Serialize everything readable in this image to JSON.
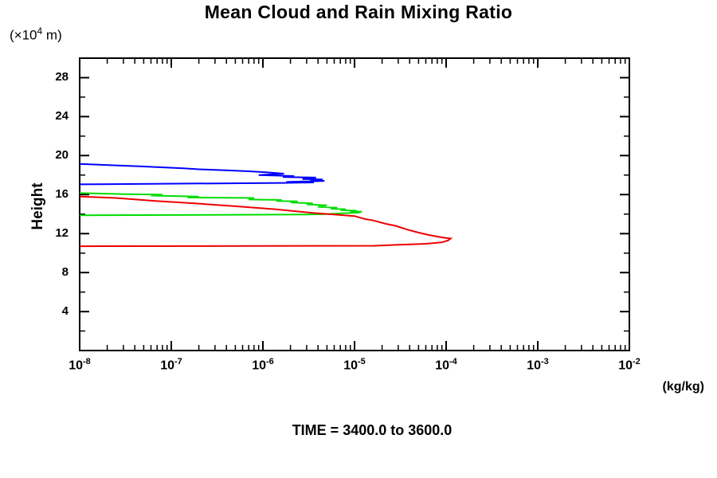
{
  "chart_data": {
    "type": "line",
    "title": "Mean Cloud and Rain Mixing Ratio",
    "y_axis_title": "Height",
    "y_axis_unit": {
      "prefix": "(×10",
      "exponent": "4",
      "suffix": " m)"
    },
    "x_axis_unit": "(kg/kg)",
    "time_annotation": "TIME = 3400.0 to 3600.0",
    "x_scale": "log10",
    "x_tick_base": "10",
    "x_range_exponents": [
      -8,
      -2
    ],
    "x_major_tick_exponents": [
      -8,
      -7,
      -6,
      -5,
      -4,
      -3,
      -2
    ],
    "y_range": [
      0,
      30
    ],
    "y_major_ticks": [
      4,
      8,
      12,
      16,
      20,
      24,
      28
    ],
    "y_minor_ticks": [
      2,
      6,
      10,
      14,
      18,
      22,
      26
    ],
    "grid": false,
    "legend": "none",
    "axis_color": "#000000",
    "series": [
      {
        "name": "blue-profile",
        "color": "#0000ff",
        "points": [
          [
            1e-08,
            19.15
          ],
          [
            2.5e-08,
            19.0
          ],
          [
            4.5e-08,
            18.9
          ],
          [
            1.35e-07,
            18.7
          ],
          [
            2e-07,
            18.6
          ],
          [
            3.9e-07,
            18.5
          ],
          [
            6.7e-07,
            18.4
          ],
          [
            1.05e-06,
            18.3
          ],
          [
            1.7e-06,
            18.15
          ],
          [
            9e-07,
            18.0
          ],
          [
            2.2e-06,
            17.9
          ],
          [
            1.65e-06,
            17.8
          ],
          [
            3.8e-06,
            17.75
          ],
          [
            2.7e-06,
            17.6
          ],
          [
            4.5e-06,
            17.55
          ],
          [
            3.3e-06,
            17.5
          ],
          [
            4.7e-06,
            17.4
          ],
          [
            1.8e-06,
            17.3
          ],
          [
            3.6e-06,
            17.25
          ],
          [
            1.65e-06,
            17.2
          ],
          [
            1e-08,
            17.05
          ]
        ]
      },
      {
        "name": "green-profile",
        "color": "#00dd00",
        "points": [
          [
            1e-08,
            16.15
          ],
          [
            3.3e-08,
            16.05
          ],
          [
            8e-08,
            16.0
          ],
          [
            6e-08,
            15.9
          ],
          [
            2e-07,
            15.8
          ],
          [
            1.5e-07,
            15.7
          ],
          [
            8e-07,
            15.65
          ],
          [
            7e-07,
            15.5
          ],
          [
            1.6e-06,
            15.45
          ],
          [
            1.4e-06,
            15.35
          ],
          [
            2.4e-06,
            15.3
          ],
          [
            2e-06,
            15.2
          ],
          [
            3.5e-06,
            15.1
          ],
          [
            3e-06,
            15.0
          ],
          [
            5e-06,
            14.9
          ],
          [
            4e-06,
            14.75
          ],
          [
            6.5e-06,
            14.65
          ],
          [
            5.5e-06,
            14.55
          ],
          [
            8e-06,
            14.5
          ],
          [
            7e-06,
            14.4
          ],
          [
            1.05e-05,
            14.35
          ],
          [
            9e-06,
            14.3
          ],
          [
            1.2e-05,
            14.25
          ],
          [
            1.1e-05,
            14.15
          ],
          [
            8e-06,
            14.1
          ],
          [
            5e-06,
            14.0
          ],
          [
            3e-06,
            13.95
          ],
          [
            1e-08,
            13.88
          ]
        ]
      },
      {
        "name": "red-profile",
        "color": "#ee0000",
        "points": [
          [
            1e-08,
            15.8
          ],
          [
            2.5e-08,
            15.65
          ],
          [
            6.7e-08,
            15.35
          ],
          [
            1.8e-07,
            15.1
          ],
          [
            5e-07,
            14.8
          ],
          [
            1.35e-06,
            14.5
          ],
          [
            3.7e-06,
            14.1
          ],
          [
            6e-06,
            13.95
          ],
          [
            1e-05,
            13.8
          ],
          [
            1.3e-05,
            13.5
          ],
          [
            1.6e-05,
            13.35
          ],
          [
            2.2e-05,
            13.0
          ],
          [
            2.8e-05,
            12.8
          ],
          [
            3.8e-05,
            12.4
          ],
          [
            5e-05,
            12.1
          ],
          [
            6.5e-05,
            11.85
          ],
          [
            8.5e-05,
            11.65
          ],
          [
            0.0001,
            11.55
          ],
          [
            0.000112,
            11.5
          ],
          [
            0.000105,
            11.3
          ],
          [
            9e-05,
            11.1
          ],
          [
            6e-05,
            10.95
          ],
          [
            3e-05,
            10.85
          ],
          [
            1.65e-05,
            10.75
          ],
          [
            1e-08,
            10.7
          ]
        ]
      }
    ]
  }
}
